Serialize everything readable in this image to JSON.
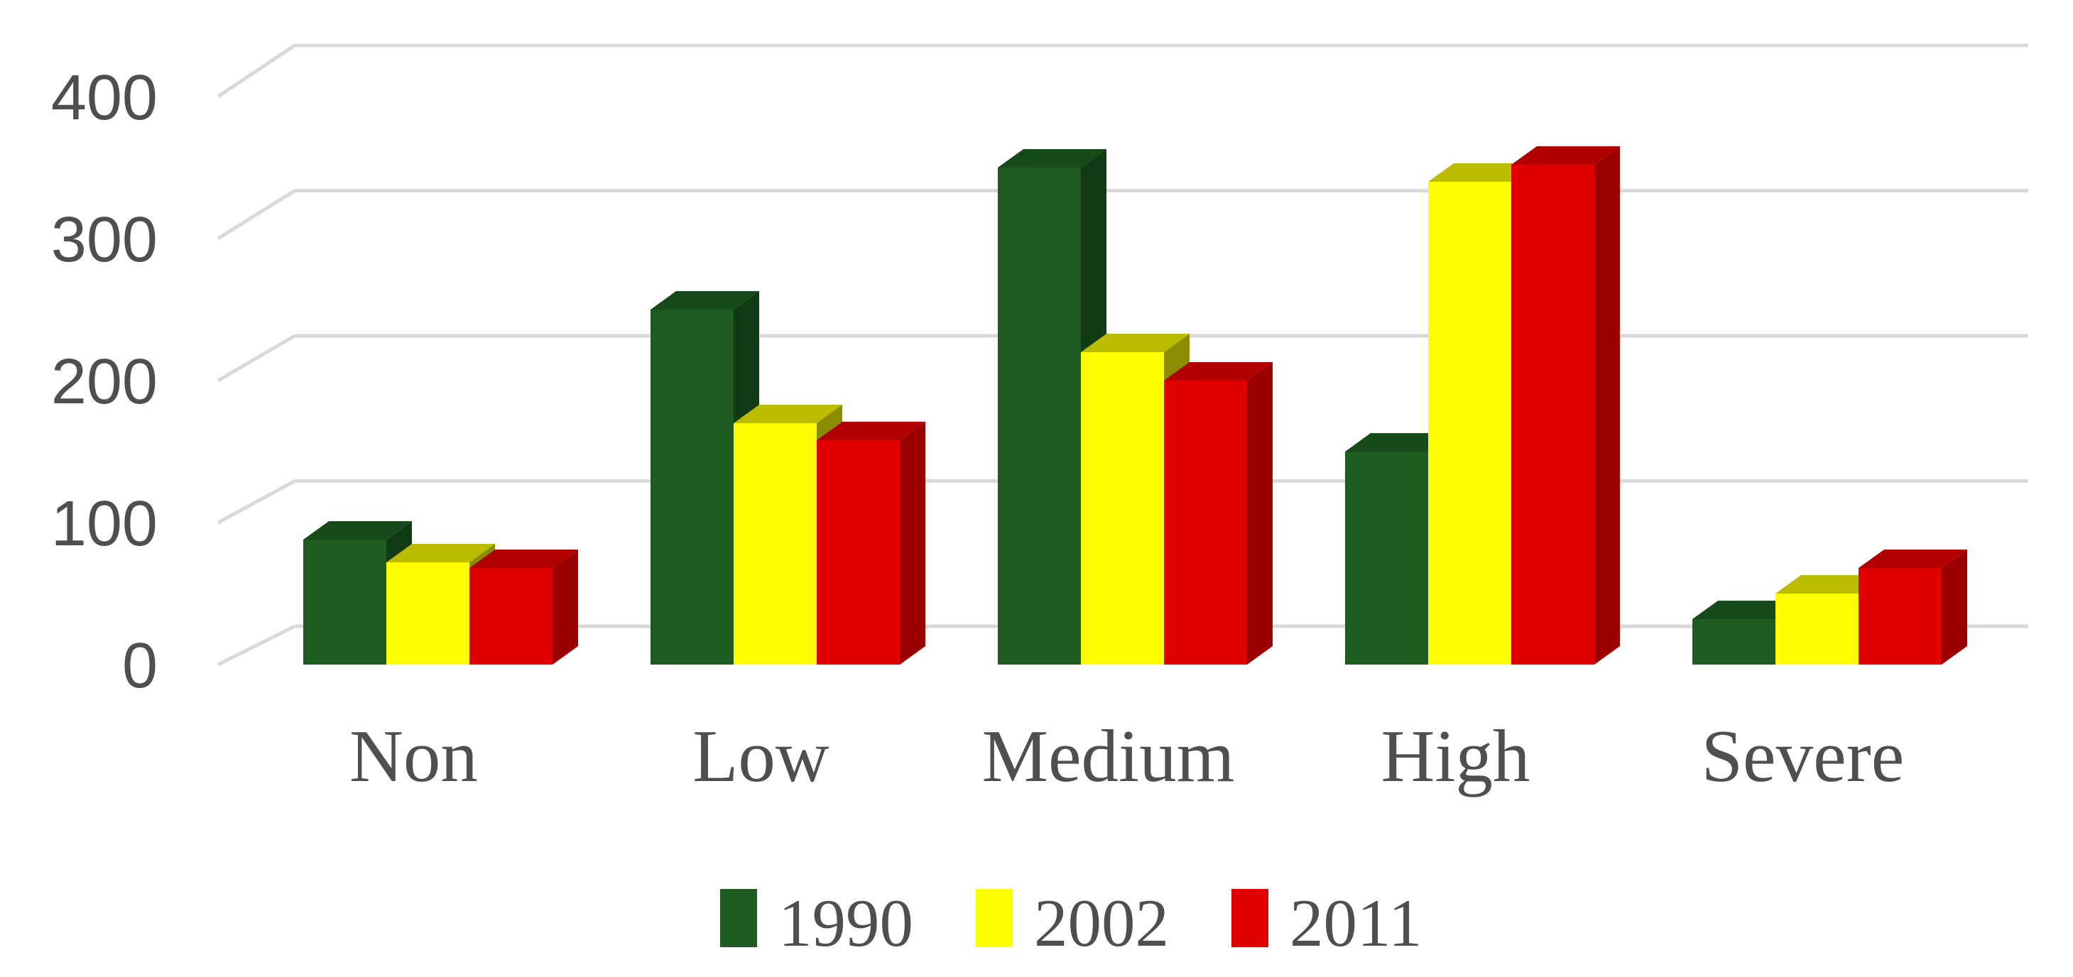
{
  "chart_data": {
    "type": "bar",
    "variant": "3d-clustered-column",
    "title": "",
    "xlabel": "",
    "ylabel": "",
    "categories": [
      "Non",
      "Low",
      "Medium",
      "High",
      "Severe"
    ],
    "series": [
      {
        "name": "1990",
        "color": "#1D5B21",
        "color_top": "#174A1B",
        "color_side": "#113B14",
        "values": [
          88,
          250,
          350,
          150,
          32
        ]
      },
      {
        "name": "2002",
        "color": "#FEFE00",
        "color_top": "#BBBC00",
        "color_side": "#8B8C00",
        "values": [
          72,
          170,
          220,
          340,
          50
        ]
      },
      {
        "name": "2011",
        "color": "#E10000",
        "color_top": "#B20000",
        "color_side": "#9A0000",
        "values": [
          68,
          158,
          200,
          352,
          68
        ]
      }
    ],
    "ylim": [
      0,
      400
    ],
    "yticks": [
      0,
      100,
      200,
      300,
      400
    ],
    "ytick_labels": [
      "0",
      "100",
      "200",
      "300",
      "400"
    ],
    "grid": true,
    "legend_position": "bottom",
    "legend_entries": [
      "1990",
      "2002",
      "2011"
    ]
  },
  "styles": {
    "background": "#FFFFFF",
    "gridline_color": "#D9D9D9",
    "axis_text_color": "#4F4F4F",
    "category_text_color": "#4F4F4F",
    "legend_text_color": "#4F4F4F"
  }
}
